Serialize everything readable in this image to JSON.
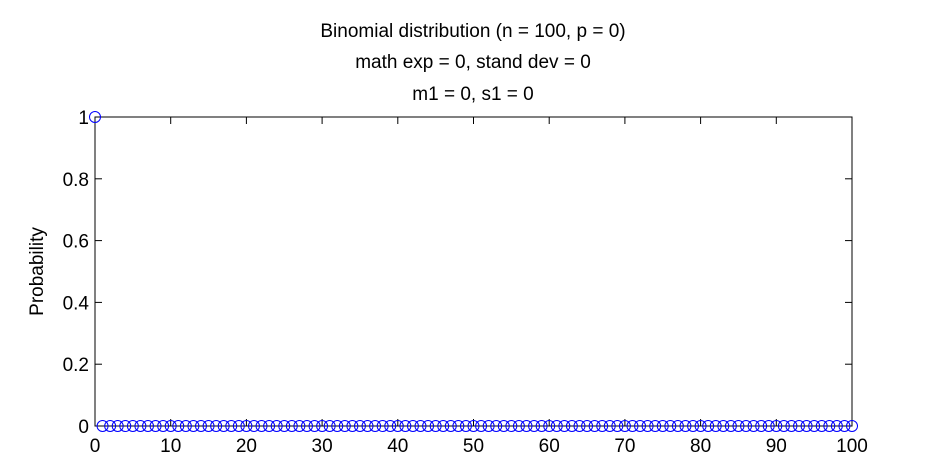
{
  "chart_data": {
    "type": "scatter",
    "title_lines": [
      "Binomial distribution (n = 100, p = 0)",
      "math exp = 0, stand dev = 0",
      "m1 = 0, s1 = 0"
    ],
    "xlabel": "",
    "ylabel": "Probability",
    "xlim": [
      0,
      100
    ],
    "ylim": [
      0,
      1
    ],
    "xticks": [
      "0",
      "10",
      "20",
      "30",
      "40",
      "50",
      "60",
      "70",
      "80",
      "90",
      "100"
    ],
    "yticks": [
      "0",
      "0.2",
      "0.4",
      "0.6",
      "0.8",
      "1"
    ],
    "grid": false,
    "marker": "circle",
    "marker_color": "#0000ff",
    "series": [
      {
        "x": [
          0,
          1,
          2,
          3,
          4,
          5,
          6,
          7,
          8,
          9,
          10,
          11,
          12,
          13,
          14,
          15,
          16,
          17,
          18,
          19,
          20,
          21,
          22,
          23,
          24,
          25,
          26,
          27,
          28,
          29,
          30,
          31,
          32,
          33,
          34,
          35,
          36,
          37,
          38,
          39,
          40,
          41,
          42,
          43,
          44,
          45,
          46,
          47,
          48,
          49,
          50,
          51,
          52,
          53,
          54,
          55,
          56,
          57,
          58,
          59,
          60,
          61,
          62,
          63,
          64,
          65,
          66,
          67,
          68,
          69,
          70,
          71,
          72,
          73,
          74,
          75,
          76,
          77,
          78,
          79,
          80,
          81,
          82,
          83,
          84,
          85,
          86,
          87,
          88,
          89,
          90,
          91,
          92,
          93,
          94,
          95,
          96,
          97,
          98,
          99,
          100
        ],
        "y": [
          1,
          0,
          0,
          0,
          0,
          0,
          0,
          0,
          0,
          0,
          0,
          0,
          0,
          0,
          0,
          0,
          0,
          0,
          0,
          0,
          0,
          0,
          0,
          0,
          0,
          0,
          0,
          0,
          0,
          0,
          0,
          0,
          0,
          0,
          0,
          0,
          0,
          0,
          0,
          0,
          0,
          0,
          0,
          0,
          0,
          0,
          0,
          0,
          0,
          0,
          0,
          0,
          0,
          0,
          0,
          0,
          0,
          0,
          0,
          0,
          0,
          0,
          0,
          0,
          0,
          0,
          0,
          0,
          0,
          0,
          0,
          0,
          0,
          0,
          0,
          0,
          0,
          0,
          0,
          0,
          0,
          0,
          0,
          0,
          0,
          0,
          0,
          0,
          0,
          0,
          0,
          0,
          0,
          0,
          0,
          0,
          0,
          0,
          0,
          0,
          0
        ]
      }
    ]
  }
}
